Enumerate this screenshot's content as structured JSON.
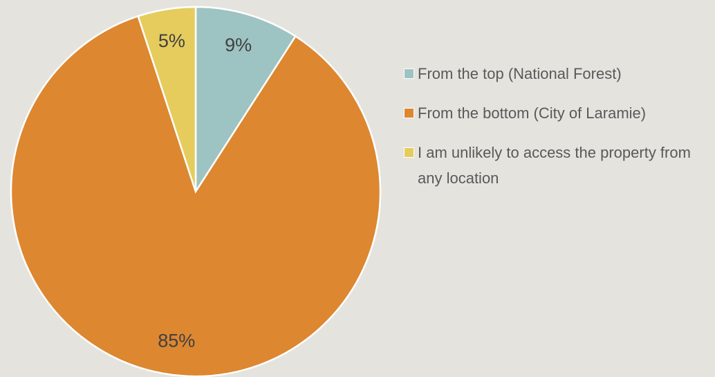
{
  "chart_data": {
    "type": "pie",
    "categories": [
      "From the top (National Forest)",
      "From the bottom (City of Laramie)",
      "I am unlikely to access the property from any location"
    ],
    "values": [
      9,
      85,
      5
    ],
    "value_labels": [
      "9%",
      "85%",
      "5%"
    ],
    "colors": [
      "#9dc3c2",
      "#dd8730",
      "#e5cc5c"
    ],
    "legend": "right"
  }
}
